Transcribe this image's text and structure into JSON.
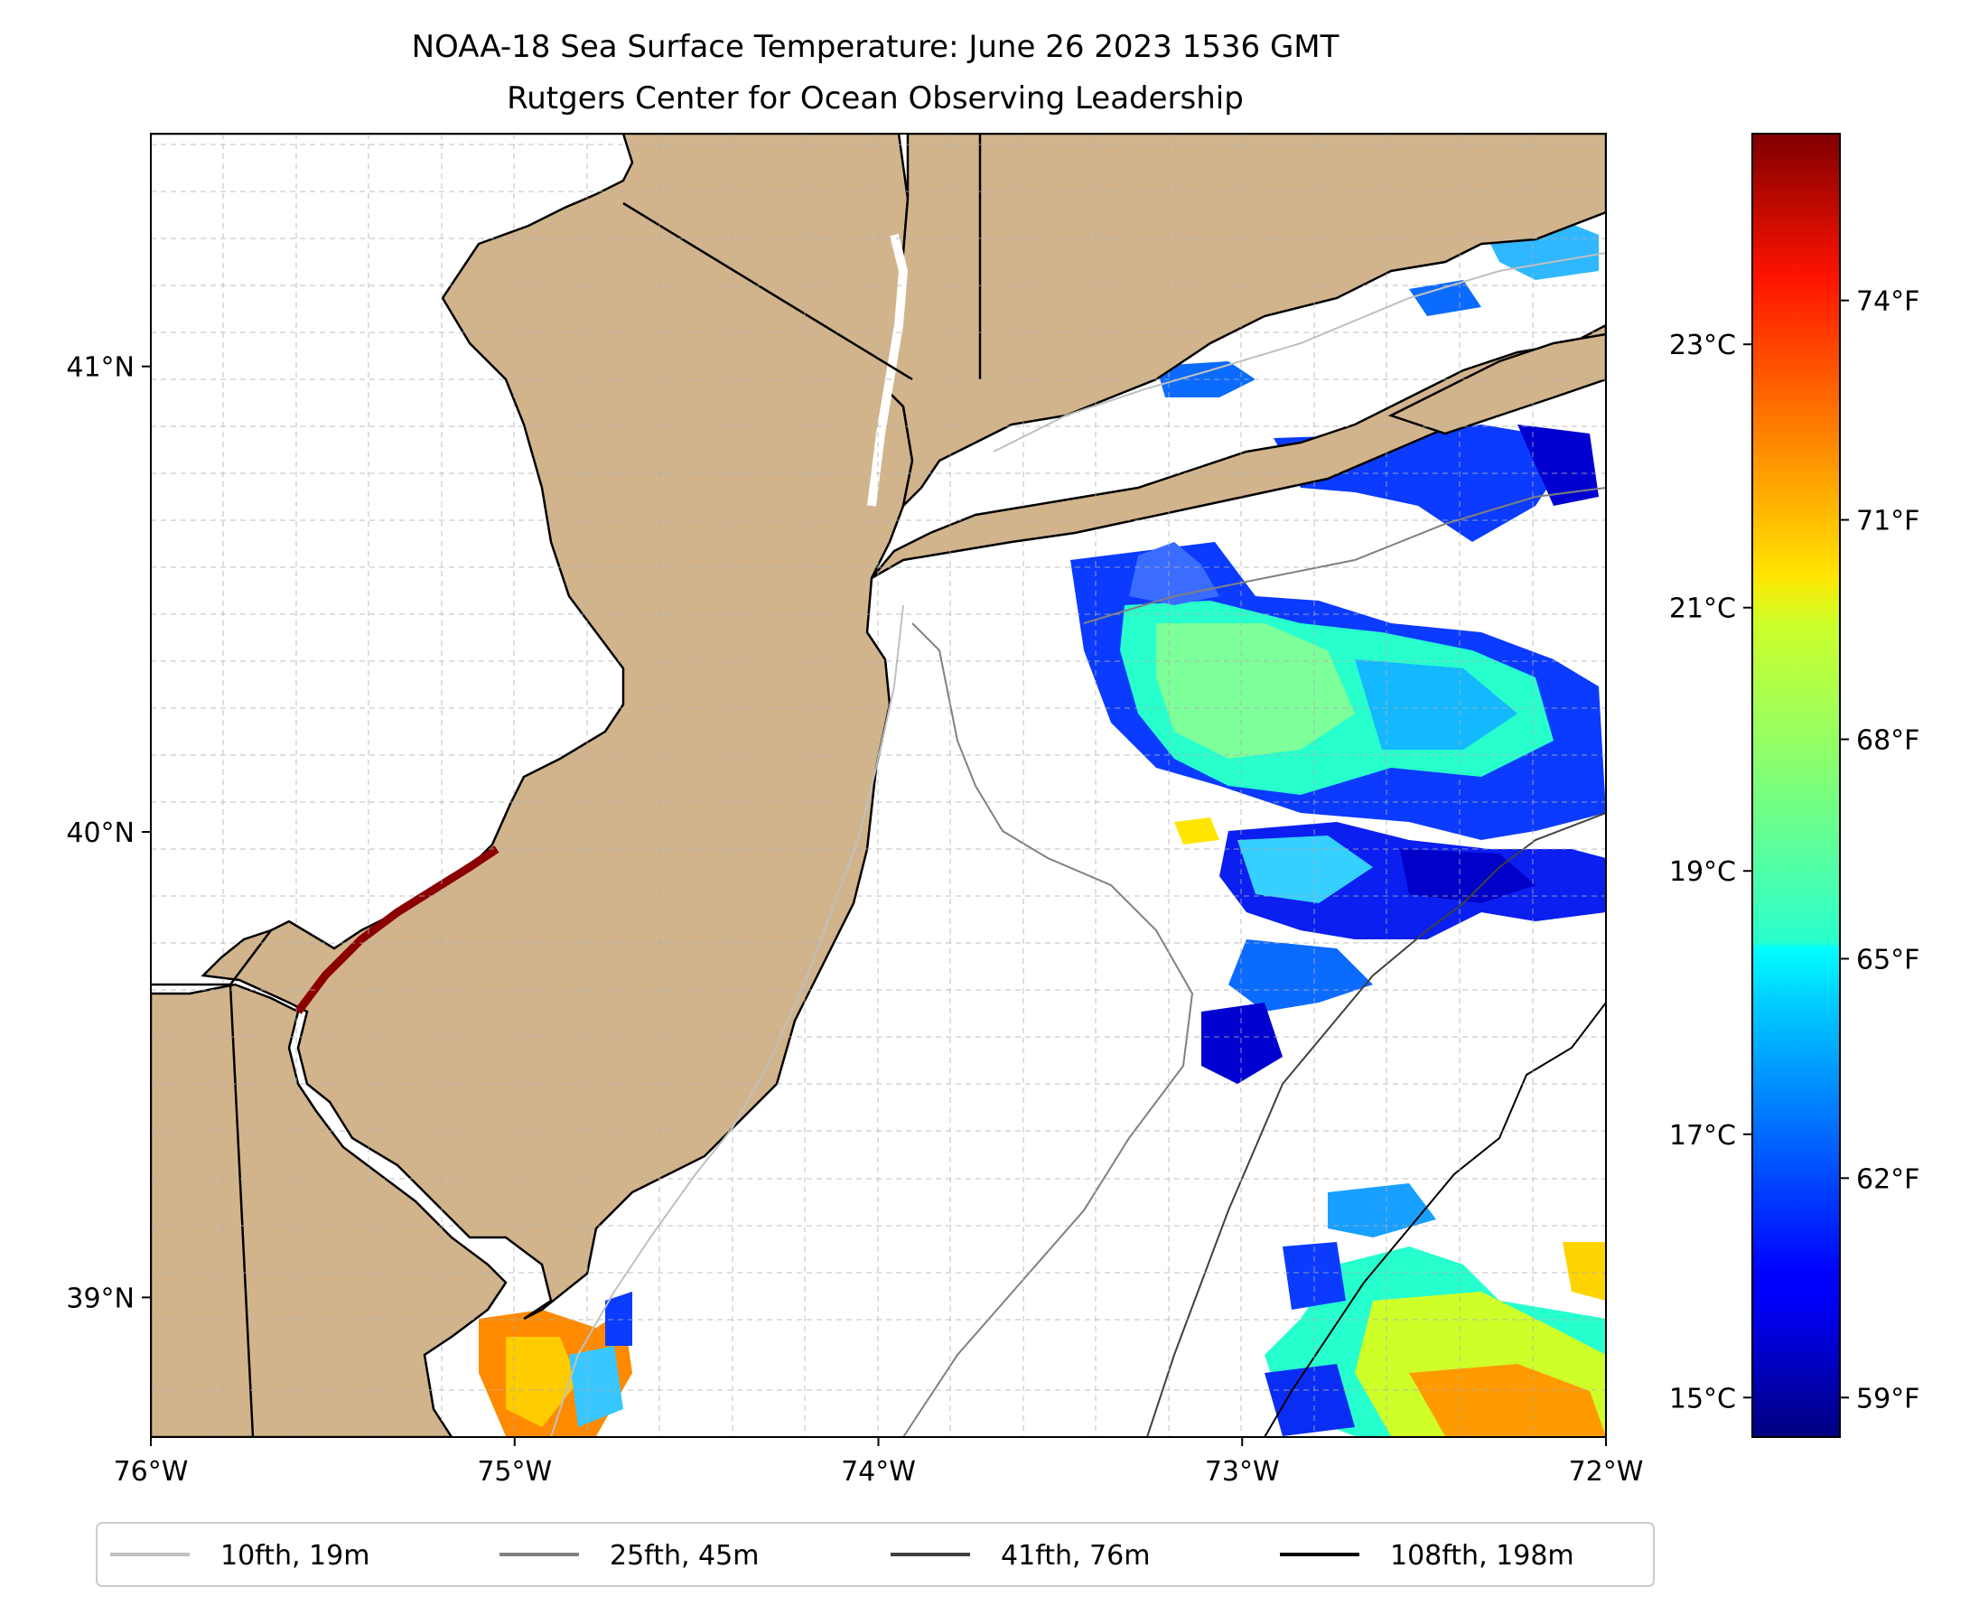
{
  "title": {
    "line1": "NOAA-18 Sea Surface Temperature: June 26 2023 1536 GMT",
    "line2": "Rutgers Center for Ocean Observing Leadership"
  },
  "map": {
    "lon_range": [
      -76,
      -72
    ],
    "lat_range": [
      38.7,
      41.5
    ],
    "x_ticks": [
      {
        "value": -76,
        "label": "76°W"
      },
      {
        "value": -75,
        "label": "75°W"
      },
      {
        "value": -74,
        "label": "74°W"
      },
      {
        "value": -73,
        "label": "73°W"
      },
      {
        "value": -72,
        "label": "72°W"
      }
    ],
    "y_ticks": [
      {
        "value": 39,
        "label": "39°N"
      },
      {
        "value": 40,
        "label": "40°N"
      },
      {
        "value": 41,
        "label": "41°N"
      }
    ],
    "land_color": "#d2b48c",
    "ocean_color": "#ffffff"
  },
  "colorbar": {
    "colormap": "jet",
    "celsius_range": [
      14.7,
      24.6
    ],
    "celsius_ticks": [
      {
        "value": 15,
        "label": "15°C"
      },
      {
        "value": 17,
        "label": "17°C"
      },
      {
        "value": 19,
        "label": "19°C"
      },
      {
        "value": 21,
        "label": "21°C"
      },
      {
        "value": 23,
        "label": "23°C"
      }
    ],
    "fahrenheit_ticks": [
      {
        "value": 59,
        "label": "59°F"
      },
      {
        "value": 62,
        "label": "62°F"
      },
      {
        "value": 65,
        "label": "65°F"
      },
      {
        "value": 68,
        "label": "68°F"
      },
      {
        "value": 71,
        "label": "71°F"
      },
      {
        "value": 74,
        "label": "74°F"
      }
    ]
  },
  "legend": {
    "location": "bottom",
    "items": [
      {
        "label": "10fth, 19m",
        "color": "#c0c0c0"
      },
      {
        "label": "25fth, 45m",
        "color": "#808080"
      },
      {
        "label": "41fth, 76m",
        "color": "#404040"
      },
      {
        "label": "108fth, 198m",
        "color": "#000000"
      }
    ]
  }
}
